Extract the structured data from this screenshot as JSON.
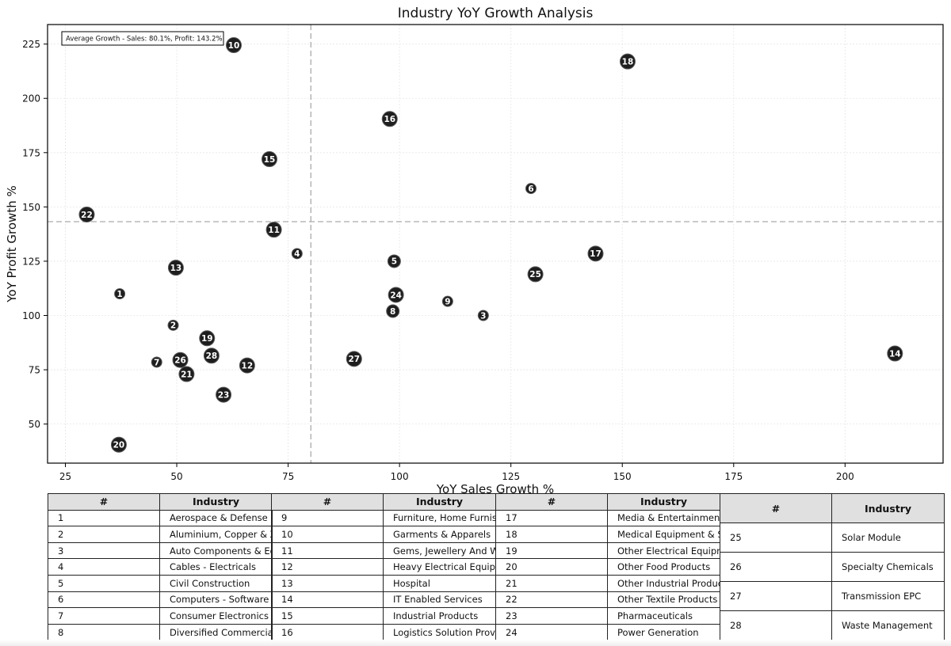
{
  "chart_data": {
    "type": "scatter",
    "title": "Industry YoY Growth Analysis",
    "xlabel": "YoY Sales Growth %",
    "ylabel": "YoY Profit Growth %",
    "xlim": [
      21,
      222
    ],
    "ylim": [
      32,
      234
    ],
    "xticks": [
      25,
      50,
      75,
      100,
      125,
      150,
      175,
      200
    ],
    "yticks": [
      50,
      75,
      100,
      125,
      150,
      175,
      200,
      225
    ],
    "grid": true,
    "average_box": "Average Growth - Sales: 80.1%, Profit: 143.2%",
    "avg_sales": 80.1,
    "avg_profit": 143.2,
    "points": [
      {
        "id": "1",
        "x": 37.2,
        "y": 110.0,
        "size": "small"
      },
      {
        "id": "2",
        "x": 49.2,
        "y": 95.5,
        "size": "small"
      },
      {
        "id": "3",
        "x": 118.8,
        "y": 100.0,
        "size": "small"
      },
      {
        "id": "4",
        "x": 77.0,
        "y": 128.5,
        "size": "small"
      },
      {
        "id": "5",
        "x": 98.8,
        "y": 125.0,
        "size": "medium"
      },
      {
        "id": "6",
        "x": 129.5,
        "y": 158.5,
        "size": "small"
      },
      {
        "id": "7",
        "x": 45.5,
        "y": 78.5,
        "size": "small"
      },
      {
        "id": "8",
        "x": 98.5,
        "y": 102.0,
        "size": "medium"
      },
      {
        "id": "9",
        "x": 110.8,
        "y": 106.5,
        "size": "small"
      },
      {
        "id": "10",
        "x": 62.8,
        "y": 224.5,
        "size": "large"
      },
      {
        "id": "11",
        "x": 71.8,
        "y": 139.5,
        "size": "large"
      },
      {
        "id": "12",
        "x": 65.8,
        "y": 77.0,
        "size": "large"
      },
      {
        "id": "13",
        "x": 49.8,
        "y": 122.0,
        "size": "large"
      },
      {
        "id": "14",
        "x": 211.2,
        "y": 82.5,
        "size": "large"
      },
      {
        "id": "15",
        "x": 70.8,
        "y": 172.0,
        "size": "large"
      },
      {
        "id": "16",
        "x": 97.8,
        "y": 190.5,
        "size": "large"
      },
      {
        "id": "17",
        "x": 144.0,
        "y": 128.5,
        "size": "large"
      },
      {
        "id": "18",
        "x": 151.2,
        "y": 217.0,
        "size": "large"
      },
      {
        "id": "19",
        "x": 56.8,
        "y": 89.5,
        "size": "large"
      },
      {
        "id": "20",
        "x": 37.0,
        "y": 40.5,
        "size": "large"
      },
      {
        "id": "21",
        "x": 52.2,
        "y": 73.0,
        "size": "large"
      },
      {
        "id": "22",
        "x": 29.8,
        "y": 146.5,
        "size": "large"
      },
      {
        "id": "23",
        "x": 60.5,
        "y": 63.5,
        "size": "large"
      },
      {
        "id": "24",
        "x": 99.2,
        "y": 109.5,
        "size": "large"
      },
      {
        "id": "25",
        "x": 130.5,
        "y": 119.0,
        "size": "large"
      },
      {
        "id": "26",
        "x": 50.8,
        "y": 79.5,
        "size": "large"
      },
      {
        "id": "27",
        "x": 89.8,
        "y": 80.0,
        "size": "large"
      },
      {
        "id": "28",
        "x": 57.8,
        "y": 81.5,
        "size": "large"
      }
    ]
  },
  "table": {
    "col_num": "#",
    "col_industry": "Industry",
    "groups": [
      [
        [
          "1",
          "Aerospace & Defense"
        ],
        [
          "2",
          "Aluminium, Copper & Zinc"
        ],
        [
          "3",
          "Auto Components & Equipments"
        ],
        [
          "4",
          "Cables - Electricals"
        ],
        [
          "5",
          "Civil Construction"
        ],
        [
          "6",
          "Computers - Software & Consulting"
        ],
        [
          "7",
          "Consumer Electronics"
        ],
        [
          "8",
          "Diversified Commercial Services"
        ]
      ],
      [
        [
          "9",
          "Furniture, Home Furnishing"
        ],
        [
          "10",
          "Garments & Apparels"
        ],
        [
          "11",
          "Gems, Jewellery And Watches"
        ],
        [
          "12",
          "Heavy Electrical Equipment"
        ],
        [
          "13",
          "Hospital"
        ],
        [
          "14",
          "IT Enabled Services"
        ],
        [
          "15",
          "Industrial Products"
        ],
        [
          "16",
          "Logistics Solution Provider"
        ]
      ],
      [
        [
          "17",
          "Media & Entertainment"
        ],
        [
          "18",
          "Medical Equipment & Supplies"
        ],
        [
          "19",
          "Other Electrical Equipment"
        ],
        [
          "20",
          "Other Food Products"
        ],
        [
          "21",
          "Other Industrial Products"
        ],
        [
          "22",
          "Other Textile Products"
        ],
        [
          "23",
          "Pharmaceuticals"
        ],
        [
          "24",
          "Power Generation"
        ]
      ],
      [
        [
          "25",
          "Solar Module"
        ],
        [
          "26",
          "Specialty Chemicals"
        ],
        [
          "27",
          "Transmission EPC"
        ],
        [
          "28",
          "Waste Management"
        ]
      ]
    ]
  }
}
